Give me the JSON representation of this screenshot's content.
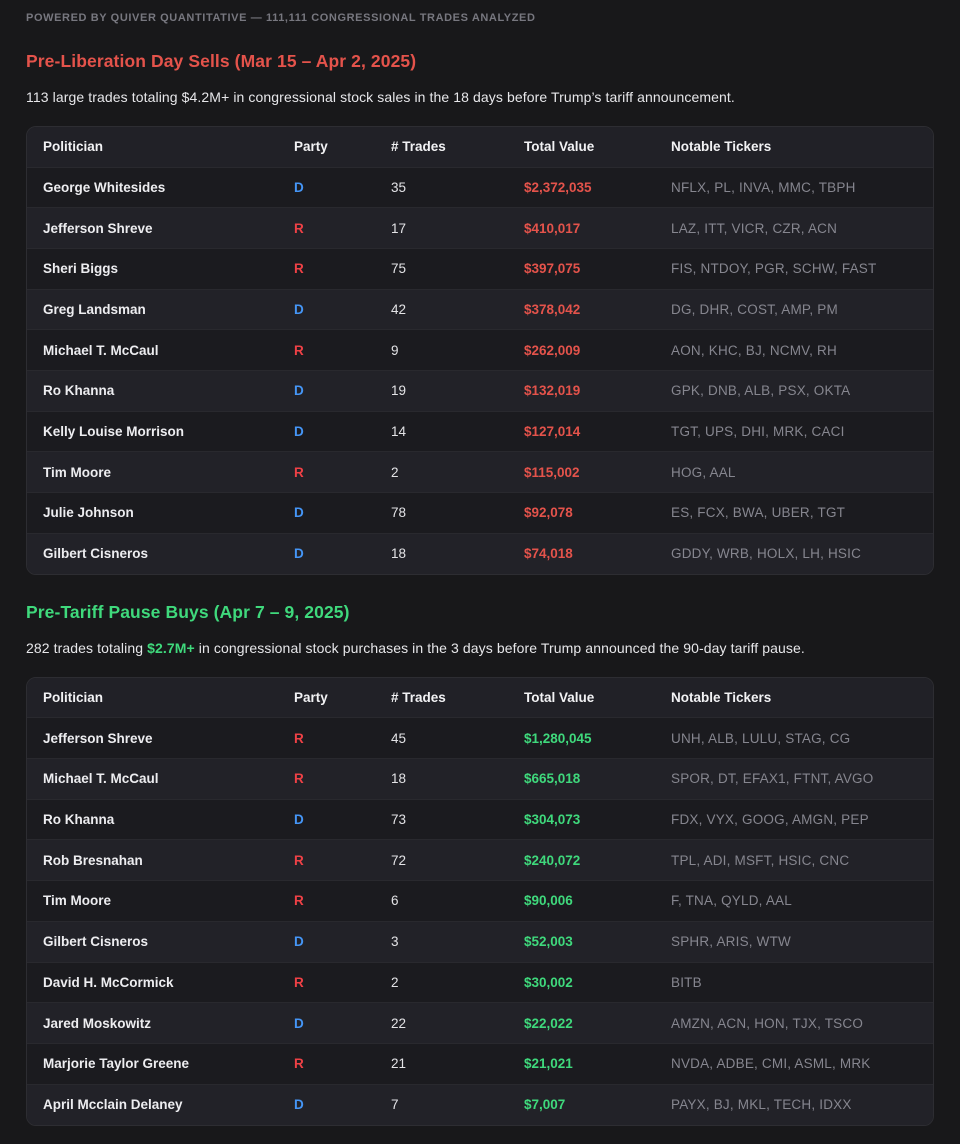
{
  "banner": {
    "text": "POWERED BY QUIVER QUANTITATIVE — 111,111 CONGRESSIONAL TRADES ANALYZED"
  },
  "colors": {
    "page_bg": "#18181a",
    "header_bg": "#212127",
    "row_dark": "#1b1b1f",
    "row_light": "#222228",
    "table_border": "#2d2d32",
    "dem_blue": "#4596f7",
    "rep_red": "#ef4146",
    "sell_red": "#e4534b",
    "buy_green": "#3fd97c",
    "ticker_gray": "#86868f",
    "banner_gray": "#77777f"
  },
  "columns": [
    "Politician",
    "Party",
    "# Trades",
    "Total Value",
    "Notable Tickers"
  ],
  "sections": [
    {
      "id": "pre-liberation-day-sells",
      "tone": "sell",
      "title": "Pre-Liberation Day Sells (Mar 15 – Apr 2, 2025)",
      "subtitle_prefix": "113 large trades totaling $4.2M+ in congressional stock sales in the 18 days before Trump’s tariff announcement.",
      "subtitle_highlight": "",
      "subtitle_suffix": "",
      "rows": [
        {
          "politician": "George Whitesides",
          "party": "D",
          "trades": "35",
          "value": "$2,372,035",
          "tickers": "NFLX, PL, INVA, MMC, TBPH"
        },
        {
          "politician": "Jefferson Shreve",
          "party": "R",
          "trades": "17",
          "value": "$410,017",
          "tickers": "LAZ, ITT, VICR, CZR, ACN"
        },
        {
          "politician": "Sheri Biggs",
          "party": "R",
          "trades": "75",
          "value": "$397,075",
          "tickers": "FIS, NTDOY, PGR, SCHW, FAST"
        },
        {
          "politician": "Greg Landsman",
          "party": "D",
          "trades": "42",
          "value": "$378,042",
          "tickers": "DG, DHR, COST, AMP, PM"
        },
        {
          "politician": "Michael T. McCaul",
          "party": "R",
          "trades": "9",
          "value": "$262,009",
          "tickers": "AON, KHC, BJ, NCMV, RH"
        },
        {
          "politician": "Ro Khanna",
          "party": "D",
          "trades": "19",
          "value": "$132,019",
          "tickers": "GPK, DNB, ALB, PSX, OKTA"
        },
        {
          "politician": "Kelly Louise Morrison",
          "party": "D",
          "trades": "14",
          "value": "$127,014",
          "tickers": "TGT, UPS, DHI, MRK, CACI"
        },
        {
          "politician": "Tim Moore",
          "party": "R",
          "trades": "2",
          "value": "$115,002",
          "tickers": "HOG, AAL"
        },
        {
          "politician": "Julie Johnson",
          "party": "D",
          "trades": "78",
          "value": "$92,078",
          "tickers": "ES, FCX, BWA, UBER, TGT"
        },
        {
          "politician": "Gilbert Cisneros",
          "party": "D",
          "trades": "18",
          "value": "$74,018",
          "tickers": "GDDY, WRB, HOLX, LH, HSIC"
        }
      ]
    },
    {
      "id": "pre-tariff-pause-buys",
      "tone": "buy",
      "title": "Pre-Tariff Pause Buys (Apr 7 – 9, 2025)",
      "subtitle_prefix": "282 trades totaling ",
      "subtitle_highlight": "$2.7M+",
      "subtitle_suffix": " in congressional stock purchases in the 3 days before Trump announced the 90-day tariff pause.",
      "rows": [
        {
          "politician": "Jefferson Shreve",
          "party": "R",
          "trades": "45",
          "value": "$1,280,045",
          "tickers": "UNH, ALB, LULU, STAG, CG"
        },
        {
          "politician": "Michael T. McCaul",
          "party": "R",
          "trades": "18",
          "value": "$665,018",
          "tickers": "SPOR, DT, EFAX1, FTNT, AVGO"
        },
        {
          "politician": "Ro Khanna",
          "party": "D",
          "trades": "73",
          "value": "$304,073",
          "tickers": "FDX, VYX, GOOG, AMGN, PEP"
        },
        {
          "politician": "Rob Bresnahan",
          "party": "R",
          "trades": "72",
          "value": "$240,072",
          "tickers": "TPL, ADI, MSFT, HSIC, CNC"
        },
        {
          "politician": "Tim Moore",
          "party": "R",
          "trades": "6",
          "value": "$90,006",
          "tickers": "F, TNA, QYLD, AAL"
        },
        {
          "politician": "Gilbert Cisneros",
          "party": "D",
          "trades": "3",
          "value": "$52,003",
          "tickers": "SPHR, ARIS, WTW"
        },
        {
          "politician": "David H. McCormick",
          "party": "R",
          "trades": "2",
          "value": "$30,002",
          "tickers": "BITB"
        },
        {
          "politician": "Jared Moskowitz",
          "party": "D",
          "trades": "22",
          "value": "$22,022",
          "tickers": "AMZN, ACN, HON, TJX, TSCO"
        },
        {
          "politician": "Marjorie Taylor Greene",
          "party": "R",
          "trades": "21",
          "value": "$21,021",
          "tickers": "NVDA, ADBE, CMI, ASML, MRK"
        },
        {
          "politician": "April Mcclain Delaney",
          "party": "D",
          "trades": "7",
          "value": "$7,007",
          "tickers": "PAYX, BJ, MKL, TECH, IDXX"
        }
      ]
    }
  ]
}
